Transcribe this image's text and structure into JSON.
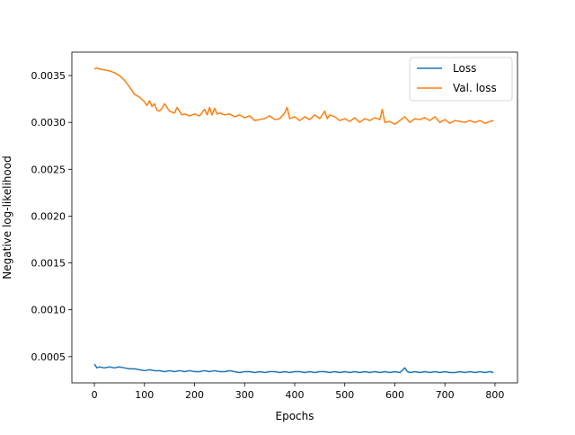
{
  "chart_data": {
    "type": "line",
    "title": "",
    "xlabel": "Epochs",
    "ylabel": "Negative log-likelihood",
    "xlim": [
      -45,
      845
    ],
    "ylim": [
      0.00022,
      0.00375
    ],
    "xticks": [
      0,
      100,
      200,
      300,
      400,
      500,
      600,
      700,
      800
    ],
    "xtick_labels": [
      "0",
      "100",
      "200",
      "300",
      "400",
      "500",
      "600",
      "700",
      "800"
    ],
    "yticks": [
      0.0005,
      0.001,
      0.0015,
      0.002,
      0.0025,
      0.003,
      0.0035
    ],
    "ytick_labels": [
      "0.0005",
      "0.0010",
      "0.0015",
      "0.0020",
      "0.0025",
      "0.0030",
      "0.0035"
    ],
    "grid": false,
    "legend_position": "top-right",
    "series": [
      {
        "name": "Loss",
        "color": "#1f77b4",
        "x": [
          0,
          5,
          10,
          20,
          30,
          40,
          50,
          60,
          70,
          80,
          90,
          100,
          110,
          120,
          130,
          140,
          150,
          160,
          170,
          180,
          190,
          200,
          210,
          220,
          230,
          240,
          250,
          260,
          270,
          280,
          290,
          300,
          310,
          320,
          330,
          340,
          350,
          360,
          370,
          380,
          390,
          400,
          410,
          420,
          430,
          440,
          450,
          460,
          470,
          480,
          490,
          500,
          510,
          520,
          530,
          540,
          550,
          560,
          570,
          580,
          590,
          600,
          610,
          620,
          625,
          630,
          640,
          650,
          660,
          670,
          680,
          690,
          700,
          710,
          720,
          730,
          740,
          750,
          760,
          770,
          780,
          790,
          797
        ],
        "values": [
          0.00042,
          0.00038,
          0.00039,
          0.00038,
          0.00039,
          0.00038,
          0.00039,
          0.00038,
          0.00037,
          0.00037,
          0.00036,
          0.00035,
          0.00036,
          0.00035,
          0.00035,
          0.00034,
          0.00035,
          0.00034,
          0.00035,
          0.00034,
          0.00035,
          0.00034,
          0.00034,
          0.00035,
          0.00034,
          0.00035,
          0.00034,
          0.00034,
          0.00035,
          0.00034,
          0.00033,
          0.00034,
          0.00034,
          0.00033,
          0.00034,
          0.00033,
          0.00034,
          0.00034,
          0.00033,
          0.00034,
          0.00033,
          0.00034,
          0.00034,
          0.00033,
          0.00034,
          0.00033,
          0.00034,
          0.00034,
          0.00033,
          0.00034,
          0.00033,
          0.00034,
          0.00033,
          0.00034,
          0.00033,
          0.00034,
          0.00033,
          0.00034,
          0.00033,
          0.00034,
          0.00033,
          0.00034,
          0.00033,
          0.00038,
          0.00034,
          0.00033,
          0.00034,
          0.00033,
          0.00034,
          0.00033,
          0.00034,
          0.00033,
          0.00034,
          0.00033,
          0.00033,
          0.00034,
          0.00033,
          0.00034,
          0.00033,
          0.00034,
          0.00033,
          0.00034,
          0.00033
        ]
      },
      {
        "name": "Val. loss",
        "color": "#ff7f0e",
        "x": [
          0,
          5,
          10,
          20,
          30,
          40,
          50,
          60,
          70,
          80,
          90,
          100,
          105,
          110,
          115,
          120,
          125,
          130,
          135,
          140,
          150,
          160,
          165,
          170,
          175,
          180,
          190,
          200,
          210,
          220,
          225,
          230,
          235,
          240,
          245,
          250,
          260,
          270,
          280,
          290,
          300,
          310,
          320,
          330,
          340,
          350,
          360,
          370,
          380,
          385,
          390,
          400,
          410,
          420,
          430,
          440,
          450,
          460,
          465,
          470,
          480,
          490,
          500,
          510,
          520,
          530,
          540,
          550,
          560,
          570,
          575,
          580,
          590,
          600,
          610,
          620,
          630,
          640,
          650,
          660,
          670,
          680,
          690,
          700,
          710,
          720,
          730,
          740,
          750,
          760,
          770,
          780,
          790,
          797
        ],
        "values": [
          0.00357,
          0.00358,
          0.00357,
          0.00356,
          0.00355,
          0.00353,
          0.0035,
          0.00345,
          0.00338,
          0.0033,
          0.00327,
          0.00322,
          0.00318,
          0.00323,
          0.00317,
          0.0032,
          0.00313,
          0.00312,
          0.00315,
          0.0032,
          0.00312,
          0.0031,
          0.00316,
          0.00312,
          0.00308,
          0.00309,
          0.00307,
          0.00309,
          0.00307,
          0.00314,
          0.00308,
          0.00316,
          0.00308,
          0.00315,
          0.00309,
          0.0031,
          0.00308,
          0.00309,
          0.00306,
          0.00308,
          0.00305,
          0.00307,
          0.00302,
          0.00303,
          0.00304,
          0.00307,
          0.00303,
          0.00304,
          0.0031,
          0.00316,
          0.00304,
          0.00306,
          0.00302,
          0.00306,
          0.00303,
          0.00308,
          0.00304,
          0.00312,
          0.00304,
          0.00308,
          0.00306,
          0.00302,
          0.00304,
          0.00301,
          0.00305,
          0.003,
          0.00304,
          0.00302,
          0.00305,
          0.00303,
          0.00314,
          0.003,
          0.00301,
          0.00298,
          0.00302,
          0.00306,
          0.003,
          0.00304,
          0.00303,
          0.00305,
          0.00302,
          0.00306,
          0.003,
          0.00303,
          0.00299,
          0.00302,
          0.00301,
          0.003,
          0.00302,
          0.003,
          0.00302,
          0.00299,
          0.00301,
          0.00302
        ]
      }
    ]
  }
}
